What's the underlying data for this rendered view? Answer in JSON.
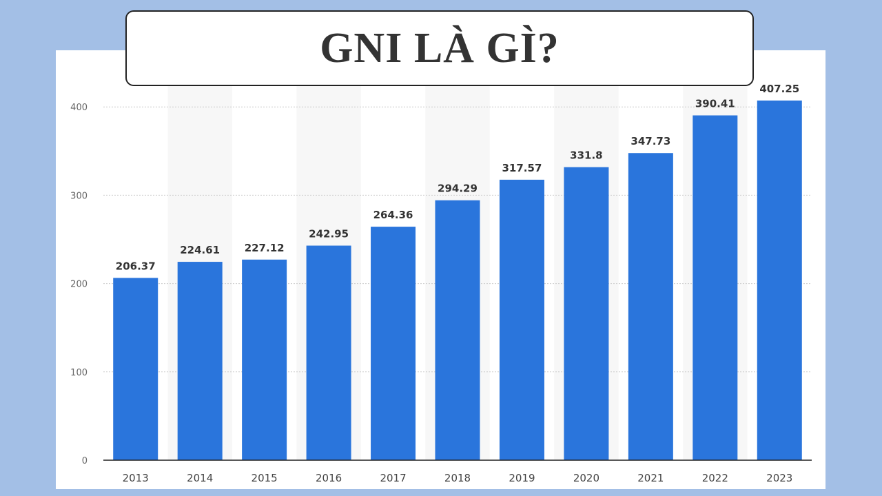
{
  "title": "GNI LÀ GÌ?",
  "colors": {
    "background": "#a3bfe6",
    "bar": "#2a75dc",
    "band": "#f7f7f7",
    "grid": "#cccccc",
    "axis": "#222222"
  },
  "chart_data": {
    "type": "bar",
    "categories": [
      "2013",
      "2014",
      "2015",
      "2016",
      "2017",
      "2018",
      "2019",
      "2020",
      "2021",
      "2022",
      "2023"
    ],
    "values": [
      206.37,
      224.61,
      227.12,
      242.95,
      264.36,
      294.29,
      317.57,
      331.8,
      347.73,
      390.41,
      407.25
    ],
    "data_labels": [
      "206.37",
      "224.61",
      "227.12",
      "242.95",
      "264.36",
      "294.29",
      "317.57",
      "331.8",
      "347.73",
      "390.41",
      "407.25"
    ],
    "yticks": [
      "0",
      "100",
      "200",
      "300",
      "400"
    ],
    "ylim": [
      0,
      400
    ],
    "grid": true,
    "legend": "none"
  }
}
